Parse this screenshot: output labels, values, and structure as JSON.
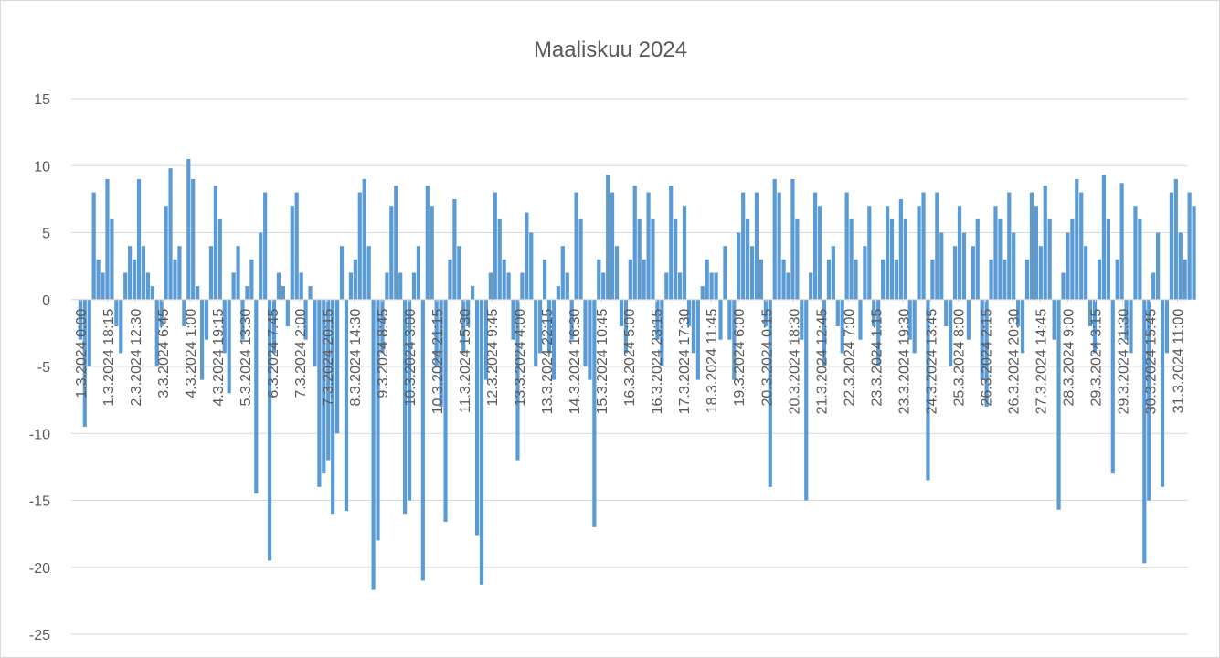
{
  "chart_data": {
    "type": "bar",
    "title": "Maaliskuu 2024",
    "color": "#5b9bd5",
    "grid": true,
    "xlim": [
      -6,
      737
    ],
    "ylim": [
      -25,
      15
    ],
    "yticks": [
      -25,
      -20,
      -15,
      -10,
      -5,
      0,
      5,
      10,
      15
    ],
    "xticks": [
      {
        "value": 0,
        "label": "1.3.2024 0:00"
      },
      {
        "value": 18.25,
        "label": "1.3.2024 18:15"
      },
      {
        "value": 36.5,
        "label": "2.3.2024 12:30"
      },
      {
        "value": 54.75,
        "label": "3.3.2024 6:45"
      },
      {
        "value": 73,
        "label": "4.3.2024 1:00"
      },
      {
        "value": 91.25,
        "label": "4.3.2024 19:15"
      },
      {
        "value": 109.5,
        "label": "5.3.2024 13:30"
      },
      {
        "value": 127.75,
        "label": "6.3.2024 7:45"
      },
      {
        "value": 146,
        "label": "7.3.2024 2:00"
      },
      {
        "value": 164.25,
        "label": "7.3.2024 20:15"
      },
      {
        "value": 182.5,
        "label": "8.3.2024 14:30"
      },
      {
        "value": 200.75,
        "label": "9.3.2024 8:45"
      },
      {
        "value": 219,
        "label": "10.3.2024 3:00"
      },
      {
        "value": 237.25,
        "label": "10.3.2024 21:15"
      },
      {
        "value": 255.5,
        "label": "11.3.2024 15:30"
      },
      {
        "value": 273.75,
        "label": "12.3.2024 9:45"
      },
      {
        "value": 292,
        "label": "13.3.2024 4:00"
      },
      {
        "value": 310.25,
        "label": "13.3.2024 22:15"
      },
      {
        "value": 328.5,
        "label": "14.3.2024 16:30"
      },
      {
        "value": 346.75,
        "label": "15.3.2024 10:45"
      },
      {
        "value": 365,
        "label": "16.3.2024 5:00"
      },
      {
        "value": 383.25,
        "label": "16.3.2024 23:15"
      },
      {
        "value": 401.5,
        "label": "17.3.2024 17:30"
      },
      {
        "value": 419.75,
        "label": "18.3.2024 11:45"
      },
      {
        "value": 438,
        "label": "19.3.2024 6:00"
      },
      {
        "value": 456.25,
        "label": "20.3.2024 0:15"
      },
      {
        "value": 474.5,
        "label": "20.3.2024 18:30"
      },
      {
        "value": 492.75,
        "label": "21.3.2024 12:45"
      },
      {
        "value": 511,
        "label": "22.3.2024 7:00"
      },
      {
        "value": 529.25,
        "label": "23.3.2024 1:15"
      },
      {
        "value": 547.5,
        "label": "23.3.2024 19:30"
      },
      {
        "value": 565.75,
        "label": "24.3.2024 13:45"
      },
      {
        "value": 584,
        "label": "25.3.2024 8:00"
      },
      {
        "value": 602.25,
        "label": "26.3.2024 2:15"
      },
      {
        "value": 620.5,
        "label": "26.3.2024 20:30"
      },
      {
        "value": 638.75,
        "label": "27.3.2024 14:45"
      },
      {
        "value": 657,
        "label": "28.3.2024 9:00"
      },
      {
        "value": 675.25,
        "label": "29.3.2024 3:15"
      },
      {
        "value": 693.5,
        "label": "29.3.2024 21:30"
      },
      {
        "value": 711.75,
        "label": "30.3.2024 15:45"
      },
      {
        "value": 730,
        "label": "31.3.2024 11:00"
      }
    ],
    "x": [
      0,
      3,
      6,
      9,
      12,
      15,
      18,
      21,
      24,
      27,
      30,
      33,
      36,
      39,
      42,
      45,
      48,
      51,
      54,
      57,
      60,
      63,
      66,
      69,
      72,
      75,
      78,
      81,
      84,
      87,
      90,
      93,
      96,
      99,
      102,
      105,
      108,
      111,
      114,
      117,
      120,
      123,
      126,
      129,
      132,
      135,
      138,
      141,
      144,
      147,
      150,
      153,
      156,
      159,
      162,
      165,
      168,
      171,
      174,
      177,
      180,
      183,
      186,
      189,
      192,
      195,
      198,
      201,
      204,
      207,
      210,
      213,
      216,
      219,
      222,
      225,
      228,
      231,
      234,
      237,
      240,
      243,
      246,
      249,
      252,
      255,
      258,
      261,
      264,
      267,
      270,
      273,
      276,
      279,
      282,
      285,
      288,
      291,
      294,
      297,
      300,
      303,
      306,
      309,
      312,
      315,
      318,
      321,
      324,
      327,
      330,
      333,
      336,
      339,
      342,
      345,
      348,
      351,
      354,
      357,
      360,
      363,
      366,
      369,
      372,
      375,
      378,
      381,
      384,
      387,
      390,
      393,
      396,
      399,
      402,
      405,
      408,
      411,
      414,
      417,
      420,
      423,
      426,
      429,
      432,
      435,
      438,
      441,
      444,
      447,
      450,
      453,
      456,
      459,
      462,
      465,
      468,
      471,
      474,
      477,
      480,
      483,
      486,
      489,
      492,
      495,
      498,
      501,
      504,
      507,
      510,
      513,
      516,
      519,
      522,
      525,
      528,
      531,
      534,
      537,
      540,
      543,
      546,
      549,
      552,
      555,
      558,
      561,
      564,
      567,
      570,
      573,
      576,
      579,
      582,
      585,
      588,
      591,
      594,
      597,
      600,
      603,
      606,
      609,
      612,
      615,
      618,
      621,
      624,
      627,
      630,
      633,
      636,
      639,
      642,
      645,
      648,
      651,
      654,
      657,
      660,
      663,
      666,
      669,
      672,
      675,
      678,
      681,
      684,
      687,
      690,
      693,
      696,
      699,
      702,
      705,
      708,
      711,
      714,
      717,
      720,
      723,
      726,
      729,
      732,
      735,
      738,
      741
    ],
    "values": [
      -3,
      -9.5,
      -5,
      8,
      3,
      2,
      9,
      6,
      -2,
      -4,
      2,
      4,
      3,
      9,
      4,
      2,
      1,
      -5,
      -2,
      7,
      9.8,
      3,
      4,
      -2,
      10.5,
      9,
      1,
      -6,
      -3,
      4,
      8.5,
      6,
      -4,
      -7,
      2,
      4,
      -3,
      1,
      3,
      -14.5,
      5,
      8,
      -19.5,
      -4,
      2,
      1,
      -2,
      7,
      8,
      2,
      -3,
      1,
      -5,
      -14,
      -13,
      -12,
      -16,
      -10,
      4,
      -15.8,
      2,
      3,
      8,
      9,
      4,
      -21.7,
      -18,
      -4,
      2,
      7,
      8.5,
      2,
      -16,
      -15,
      2,
      4,
      -21,
      8.5,
      7,
      -5,
      -8,
      -16.6,
      3,
      7.5,
      4,
      -4,
      -2,
      1,
      -17.6,
      -21.3,
      -6,
      2,
      8,
      6,
      3,
      2,
      -3,
      -12,
      2,
      6.5,
      5,
      -5,
      -4,
      3,
      -4,
      -6,
      1,
      4,
      2,
      -3,
      8,
      6,
      -5,
      -6,
      -17,
      3,
      2,
      9.3,
      8,
      4,
      -2,
      -4,
      3,
      8.5,
      6,
      3,
      8,
      6,
      -3,
      -5,
      2,
      8.5,
      6,
      2,
      7,
      -2,
      -4,
      -6,
      1,
      3,
      2,
      2,
      -3,
      4,
      -3,
      -6,
      5,
      8,
      6,
      4,
      8,
      3,
      -2,
      -14,
      9,
      8,
      3,
      2,
      9,
      6,
      -3,
      -15,
      2,
      8,
      7,
      -5,
      3,
      4,
      -2,
      -4,
      8,
      6,
      3,
      -3,
      4,
      7,
      -2,
      -5,
      3,
      7,
      6,
      3,
      7.5,
      6,
      -3,
      -4,
      7,
      8,
      -13.5,
      3,
      8,
      5,
      -2,
      -5,
      4,
      7,
      5,
      -3,
      4,
      6,
      -6,
      -8,
      3,
      7,
      6,
      3,
      8,
      5,
      -2,
      -4,
      3,
      8,
      7,
      4,
      8.5,
      6,
      -3,
      -15.7,
      2,
      5,
      6,
      9,
      8,
      4,
      -2,
      -4,
      3,
      9.3,
      6,
      -13,
      3,
      8.7,
      -3,
      -4,
      7,
      6,
      -19.7,
      -15,
      2,
      5,
      -14,
      -4,
      8,
      9,
      5,
      3,
      8,
      7
    ]
  }
}
